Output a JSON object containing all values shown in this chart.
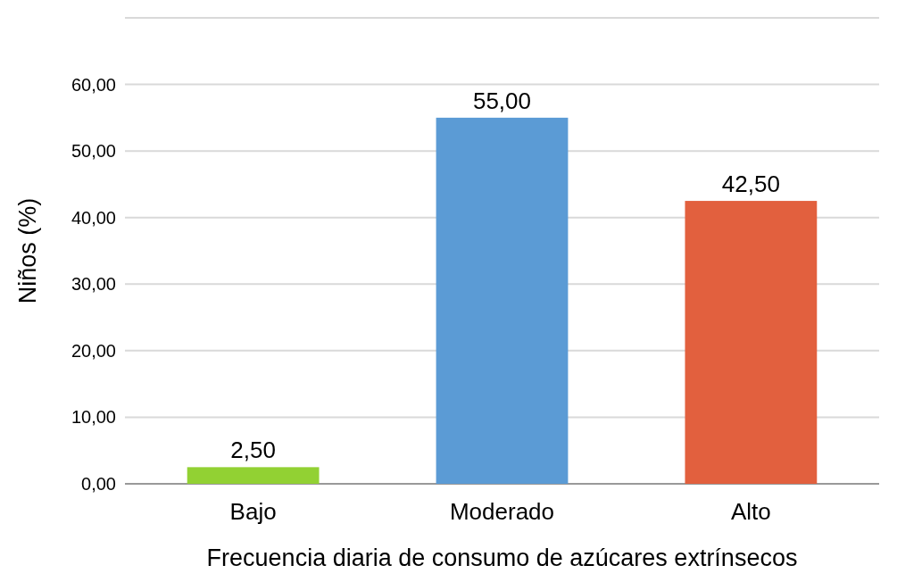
{
  "chart_data": {
    "type": "bar",
    "xlabel": "Frecuencia diaria de consumo de azúcares extrínsecos",
    "ylabel": "Niños (%)",
    "categories": [
      "Bajo",
      "Moderado",
      "Alto"
    ],
    "values": [
      2.5,
      55,
      42.5
    ],
    "colors": [
      "#92d133",
      "#5b9bd5",
      "#e2603e"
    ],
    "value_labels": [
      "2,50",
      "55,00",
      "42,50"
    ],
    "ylim": [
      0,
      70
    ],
    "yticks": [
      {
        "value": 0,
        "label": "0,00"
      },
      {
        "value": 10,
        "label": "10,00"
      },
      {
        "value": 20,
        "label": "20,00"
      },
      {
        "value": 30,
        "label": "30,00"
      },
      {
        "value": 40,
        "label": "40,00"
      },
      {
        "value": 50,
        "label": "50,00"
      },
      {
        "value": 60,
        "label": "60,00"
      },
      {
        "value": 70,
        "label": null
      }
    ],
    "grid": "y"
  }
}
